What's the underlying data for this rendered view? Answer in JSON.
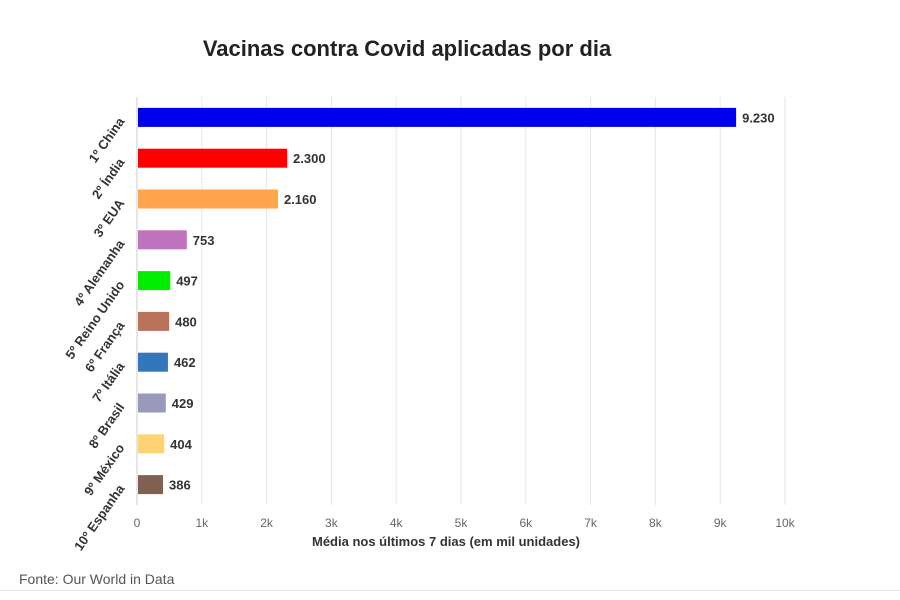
{
  "title": "Vacinas contra Covid aplicadas por dia",
  "source": "Fonte: Our World in Data",
  "chart_data": {
    "type": "bar",
    "orientation": "horizontal",
    "title": "Vacinas contra Covid aplicadas por dia",
    "xlabel": "Média nos últimos 7 dias (em mil unidades)",
    "ylabel": "",
    "xlim": [
      0,
      10000
    ],
    "grid": true,
    "legend": "none",
    "x_ticks": [
      "0",
      "1k",
      "2k",
      "3k",
      "4k",
      "5k",
      "6k",
      "7k",
      "8k",
      "9k",
      "10k"
    ],
    "categories": [
      "1º China",
      "2º Índia",
      "3º EUA",
      "4º Alemanha",
      "5º Reino Unido",
      "6º França",
      "7º Itália",
      "8º Brasil",
      "9º México",
      "10º Espanha"
    ],
    "values": [
      9230,
      2300,
      2160,
      753,
      497,
      480,
      462,
      429,
      404,
      386
    ],
    "value_labels": [
      "9.230",
      "2.300",
      "2.160",
      "753",
      "497",
      "480",
      "462",
      "429",
      "404",
      "386"
    ],
    "colors": [
      "#0000ee",
      "#ff0000",
      "#ffa64d",
      "#bf73bf",
      "#00ee00",
      "#b8735a",
      "#3377bb",
      "#9999bb",
      "#ffd273",
      "#806050"
    ]
  }
}
